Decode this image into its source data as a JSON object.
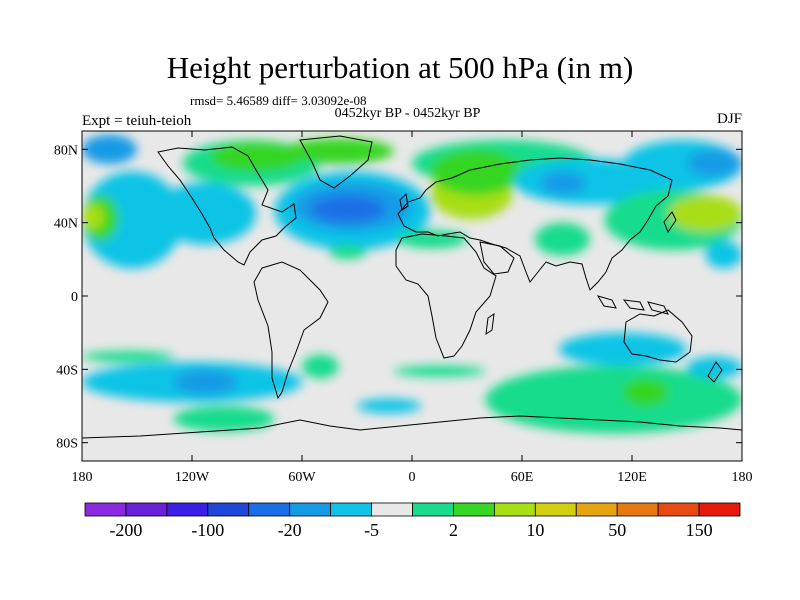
{
  "title": "Height perturbation at 500 hPa (in m)",
  "stats": "rmsd= 5.46589 diff= 3.03092e-08",
  "period": "0452kyr BP - 0452kyr BP",
  "experiment": "Expt = teiuh-teioh",
  "season": "DJF",
  "map": {
    "projection": "cylindrical-equidistant",
    "lon_range": [
      -180,
      180
    ],
    "lat_range": [
      -90,
      90
    ],
    "x_ticks": [
      {
        "lon": -180,
        "label": "180"
      },
      {
        "lon": -120,
        "label": "120W"
      },
      {
        "lon": -60,
        "label": "60W"
      },
      {
        "lon": 0,
        "label": "0"
      },
      {
        "lon": 60,
        "label": "60E"
      },
      {
        "lon": 120,
        "label": "120E"
      },
      {
        "lon": 180,
        "label": "180"
      }
    ],
    "y_ticks": [
      {
        "lat": 80,
        "label": "80N"
      },
      {
        "lat": 40,
        "label": "40N"
      },
      {
        "lat": 0,
        "label": "0"
      },
      {
        "lat": -40,
        "label": "40S"
      },
      {
        "lat": -80,
        "label": "80S"
      }
    ]
  },
  "colorbar": {
    "colors": [
      "#8a2be2",
      "#6a1fd8",
      "#3c1ee6",
      "#1e46d8",
      "#1a6fe6",
      "#149be6",
      "#10c4e6",
      "#e8e8e8",
      "#18dc8c",
      "#36d624",
      "#a8de14",
      "#d2cf10",
      "#e6a410",
      "#e67810",
      "#e64a10",
      "#e61a0a"
    ],
    "labels": [
      {
        "after_box": 1,
        "label": "-200"
      },
      {
        "after_box": 3,
        "label": "-100"
      },
      {
        "after_box": 5,
        "label": "-20"
      },
      {
        "after_box": 7,
        "label": "-5"
      },
      {
        "after_box": 9,
        "label": "2"
      },
      {
        "after_box": 11,
        "label": "10"
      },
      {
        "after_box": 13,
        "label": "50"
      },
      {
        "after_box": 15,
        "label": "150"
      }
    ]
  },
  "anomaly_regions": [
    {
      "color": "#149be6",
      "lon": [
        -180,
        -150
      ],
      "lat": [
        72,
        88
      ]
    },
    {
      "color": "#10c4e6",
      "lon": [
        -180,
        -125
      ],
      "lat": [
        15,
        68
      ]
    },
    {
      "color": "#36d624",
      "lon": [
        -180,
        -160
      ],
      "lat": [
        30,
        55
      ]
    },
    {
      "color": "#a8de14",
      "lon": [
        -180,
        -168
      ],
      "lat": [
        36,
        50
      ]
    },
    {
      "color": "#10c4e6",
      "lon": [
        -140,
        -85
      ],
      "lat": [
        28,
        62
      ]
    },
    {
      "color": "#10c4e6",
      "lon": [
        -75,
        10
      ],
      "lat": [
        25,
        68
      ]
    },
    {
      "color": "#149be6",
      "lon": [
        -65,
        0
      ],
      "lat": [
        35,
        62
      ]
    },
    {
      "color": "#1a6fe6",
      "lon": [
        -55,
        -15
      ],
      "lat": [
        40,
        55
      ]
    },
    {
      "color": "#18dc8c",
      "lon": [
        -125,
        -50
      ],
      "lat": [
        60,
        85
      ]
    },
    {
      "color": "#36d624",
      "lon": [
        -110,
        -60
      ],
      "lat": [
        68,
        84
      ]
    },
    {
      "color": "#36d624",
      "lon": [
        -70,
        -10
      ],
      "lat": [
        72,
        86
      ]
    },
    {
      "color": "#18dc8c",
      "lon": [
        0,
        100
      ],
      "lat": [
        60,
        85
      ]
    },
    {
      "color": "#a8de14",
      "lon": [
        10,
        55
      ],
      "lat": [
        42,
        70
      ]
    },
    {
      "color": "#36d624",
      "lon": [
        10,
        60
      ],
      "lat": [
        55,
        80
      ]
    },
    {
      "color": "#18dc8c",
      "lon": [
        -45,
        -25
      ],
      "lat": [
        20,
        28
      ]
    },
    {
      "color": "#18dc8c",
      "lon": [
        -8,
        30
      ],
      "lat": [
        26,
        36
      ]
    },
    {
      "color": "#18dc8c",
      "lon": [
        67,
        97
      ],
      "lat": [
        22,
        40
      ]
    },
    {
      "color": "#10c4e6",
      "lon": [
        55,
        140
      ],
      "lat": [
        50,
        75
      ]
    },
    {
      "color": "#149be6",
      "lon": [
        70,
        95
      ],
      "lat": [
        55,
        68
      ]
    },
    {
      "color": "#18dc8c",
      "lon": [
        105,
        180
      ],
      "lat": [
        25,
        58
      ]
    },
    {
      "color": "#a8de14",
      "lon": [
        140,
        180
      ],
      "lat": [
        35,
        55
      ]
    },
    {
      "color": "#10c4e6",
      "lon": [
        115,
        180
      ],
      "lat": [
        58,
        85
      ]
    },
    {
      "color": "#149be6",
      "lon": [
        150,
        180
      ],
      "lat": [
        65,
        80
      ]
    },
    {
      "color": "#10c4e6",
      "lon": [
        160,
        180
      ],
      "lat": [
        15,
        30
      ]
    },
    {
      "color": "#18dc8c",
      "lon": [
        -180,
        -130
      ],
      "lat": [
        -36,
        -30
      ]
    },
    {
      "color": "#10c4e6",
      "lon": [
        -180,
        -60
      ],
      "lat": [
        -58,
        -36
      ]
    },
    {
      "color": "#149be6",
      "lon": [
        -130,
        -95
      ],
      "lat": [
        -54,
        -40
      ]
    },
    {
      "color": "#18dc8c",
      "lon": [
        -60,
        -40
      ],
      "lat": [
        -45,
        -32
      ]
    },
    {
      "color": "#18dc8c",
      "lon": [
        -130,
        -75
      ],
      "lat": [
        -74,
        -60
      ]
    },
    {
      "color": "#10c4e6",
      "lon": [
        -30,
        5
      ],
      "lat": [
        -64,
        -56
      ]
    },
    {
      "color": "#18dc8c",
      "lon": [
        -10,
        40
      ],
      "lat": [
        -44,
        -38
      ]
    },
    {
      "color": "#10c4e6",
      "lon": [
        80,
        150
      ],
      "lat": [
        -38,
        -20
      ]
    },
    {
      "color": "#18dc8c",
      "lon": [
        40,
        180
      ],
      "lat": [
        -75,
        -38
      ]
    },
    {
      "color": "#36d624",
      "lon": [
        115,
        140
      ],
      "lat": [
        -60,
        -45
      ]
    },
    {
      "color": "#10c4e6",
      "lon": [
        150,
        180
      ],
      "lat": [
        -45,
        -33
      ]
    }
  ]
}
